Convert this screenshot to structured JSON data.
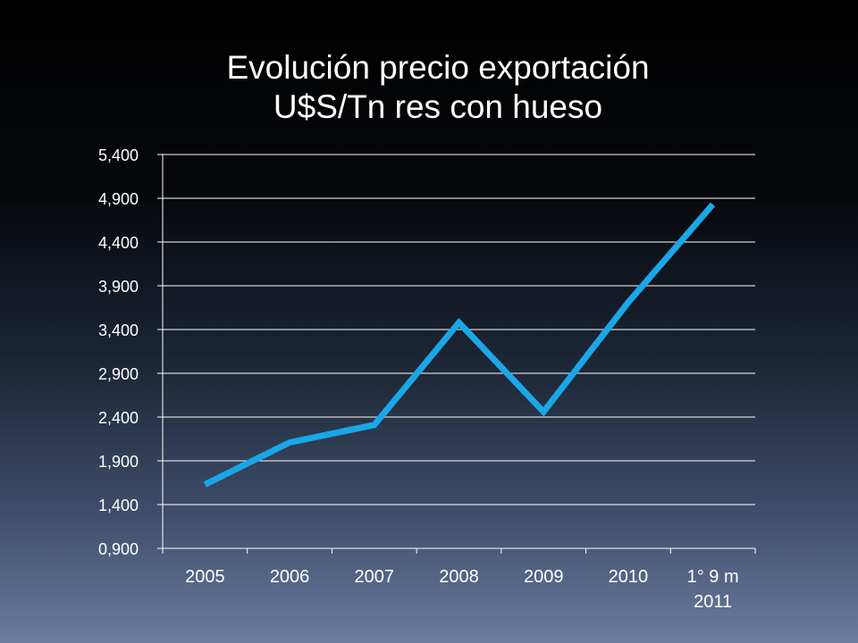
{
  "chart_data": {
    "type": "line",
    "title": "Evolución precio exportación",
    "subtitle": "U$S/Tn res con hueso",
    "xlabel": "",
    "ylabel": "",
    "categories": [
      "2005",
      "2006",
      "2007",
      "2008",
      "2009",
      "2010",
      "1° 9 m 2011"
    ],
    "category_lines": [
      [
        "2005"
      ],
      [
        "2006"
      ],
      [
        "2007"
      ],
      [
        "2008"
      ],
      [
        "2009"
      ],
      [
        "2010"
      ],
      [
        "1° 9 m",
        "2011"
      ]
    ],
    "values": [
      1.63,
      2.11,
      2.31,
      3.48,
      2.46,
      3.71,
      4.83
    ],
    "ylim": [
      0.9,
      5.4
    ],
    "yticks": [
      "0,900",
      "1,400",
      "1,900",
      "2,400",
      "2,900",
      "3,400",
      "3,900",
      "4,400",
      "4,900",
      "5,400"
    ],
    "grid": true,
    "line_color": "#1aa7e8",
    "gridline_color": "#ffffff"
  }
}
